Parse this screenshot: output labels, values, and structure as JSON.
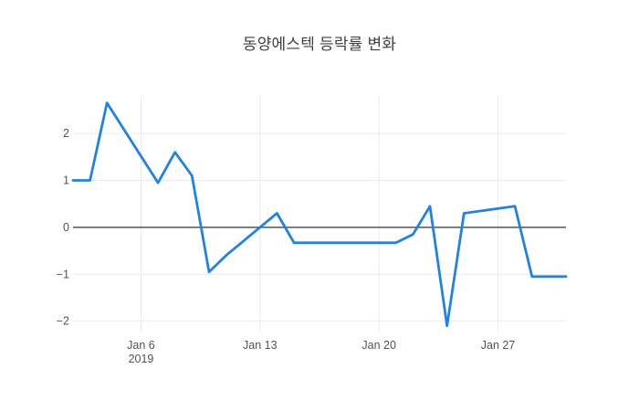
{
  "chart_data": {
    "type": "line",
    "title": "동양에스텍 등락률 변화",
    "xlabel": "",
    "ylabel": "",
    "legend": false,
    "grid": true,
    "xlim": [
      "2019-01-02",
      "2019-01-31"
    ],
    "ylim": [
      -2.24,
      2.8
    ],
    "x": [
      "2019-01-02",
      "2019-01-03",
      "2019-01-04",
      "2019-01-07",
      "2019-01-08",
      "2019-01-09",
      "2019-01-10",
      "2019-01-11",
      "2019-01-14",
      "2019-01-15",
      "2019-01-16",
      "2019-01-17",
      "2019-01-18",
      "2019-01-21",
      "2019-01-22",
      "2019-01-23",
      "2019-01-24",
      "2019-01-25",
      "2019-01-28",
      "2019-01-29",
      "2019-01-30",
      "2019-01-31"
    ],
    "values": [
      1.0,
      1.0,
      2.65,
      0.95,
      1.6,
      1.1,
      -0.95,
      -0.6,
      0.3,
      -0.33,
      -0.33,
      -0.33,
      -0.33,
      -0.33,
      -0.15,
      0.45,
      -2.1,
      0.3,
      0.45,
      -1.05,
      -1.05,
      -1.05
    ],
    "xticks": [
      {
        "value": "2019-01-06",
        "label": "Jan 6",
        "year_label": "2019"
      },
      {
        "value": "2019-01-13",
        "label": "Jan 13",
        "year_label": ""
      },
      {
        "value": "2019-01-20",
        "label": "Jan 20",
        "year_label": ""
      },
      {
        "value": "2019-01-27",
        "label": "Jan 27",
        "year_label": ""
      }
    ],
    "yticks": [
      {
        "value": 2,
        "label": "2"
      },
      {
        "value": 1,
        "label": "1"
      },
      {
        "value": 0,
        "label": "0"
      },
      {
        "value": -1,
        "label": "−1"
      },
      {
        "value": -2,
        "label": "−2"
      }
    ],
    "colors": {
      "line": "#1e82e6",
      "zeroline": "#444444",
      "grid": "#ebebeb",
      "tick_label": "#535353",
      "title": "#3f3f3f",
      "background": "#ffffff"
    }
  }
}
